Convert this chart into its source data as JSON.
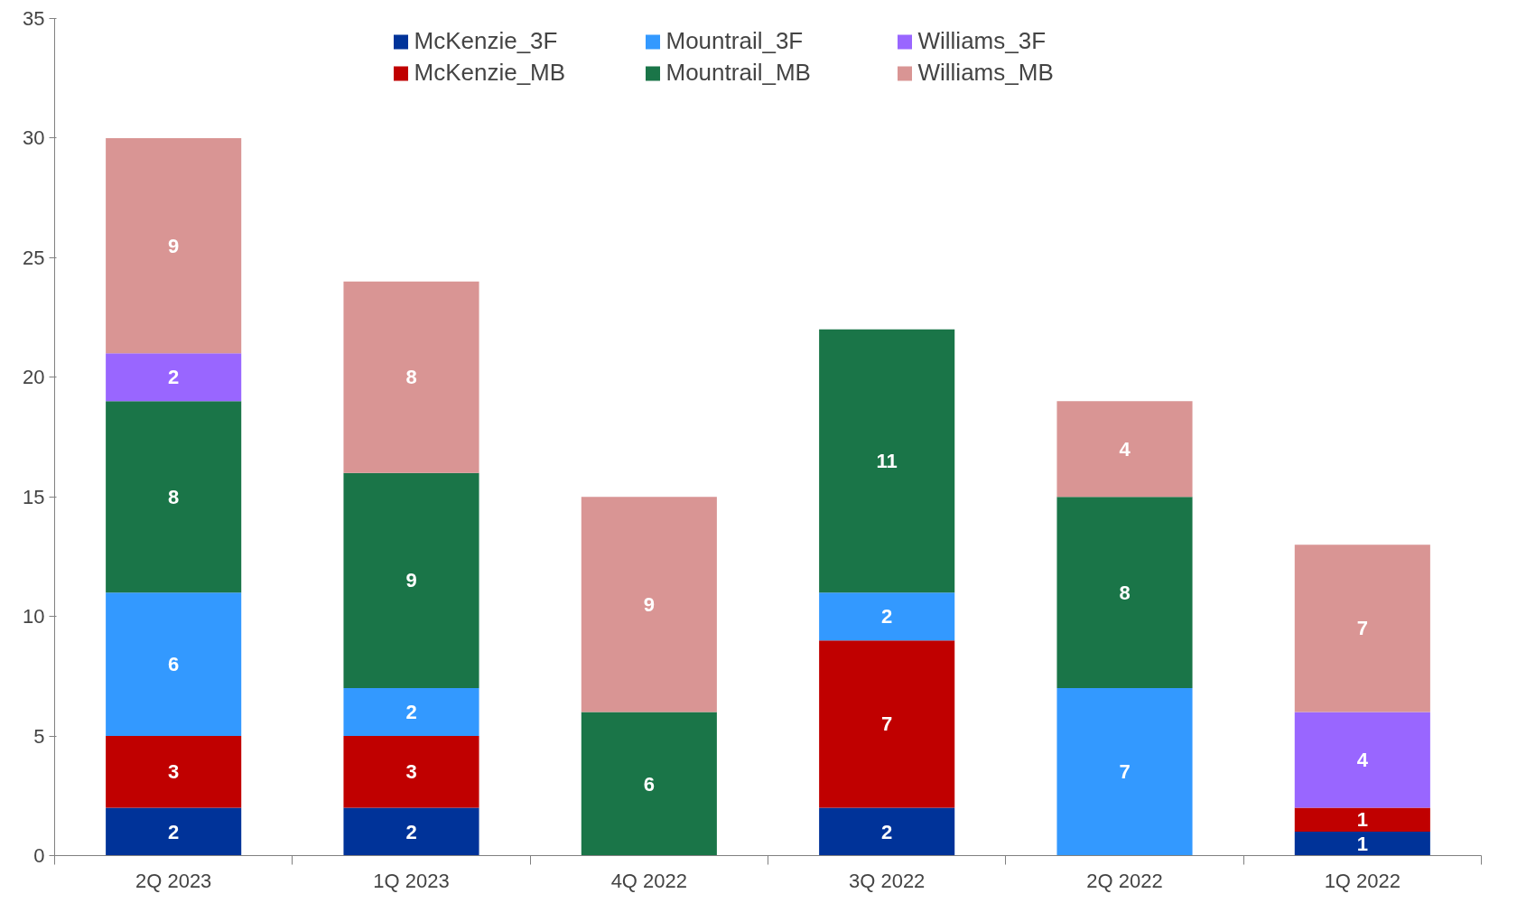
{
  "chart_data": {
    "type": "bar",
    "stacked": true,
    "categories": [
      "2Q 2023",
      "1Q 2023",
      "4Q 2022",
      "3Q 2022",
      "2Q 2022",
      "1Q 2022"
    ],
    "series": [
      {
        "name": "McKenzie_3F",
        "color": "#003399",
        "values": [
          2,
          2,
          null,
          2,
          null,
          1
        ]
      },
      {
        "name": "McKenzie_MB",
        "color": "#c00000",
        "values": [
          3,
          3,
          null,
          7,
          null,
          1
        ]
      },
      {
        "name": "Mountrail_3F",
        "color": "#3399ff",
        "values": [
          6,
          2,
          null,
          2,
          7,
          null
        ]
      },
      {
        "name": "Mountrail_MB",
        "color": "#1a7548",
        "values": [
          8,
          9,
          6,
          11,
          8,
          null
        ]
      },
      {
        "name": "Williams_3F",
        "color": "#9966ff",
        "values": [
          2,
          null,
          null,
          null,
          null,
          4
        ]
      },
      {
        "name": "Williams_MB",
        "color": "#d99594",
        "values": [
          9,
          8,
          9,
          null,
          4,
          7
        ]
      }
    ],
    "ylim": [
      0,
      35
    ],
    "yticks": [
      0,
      5,
      10,
      15,
      20,
      25,
      30,
      35
    ],
    "grid": false,
    "legend": "top",
    "data_labels": true
  }
}
